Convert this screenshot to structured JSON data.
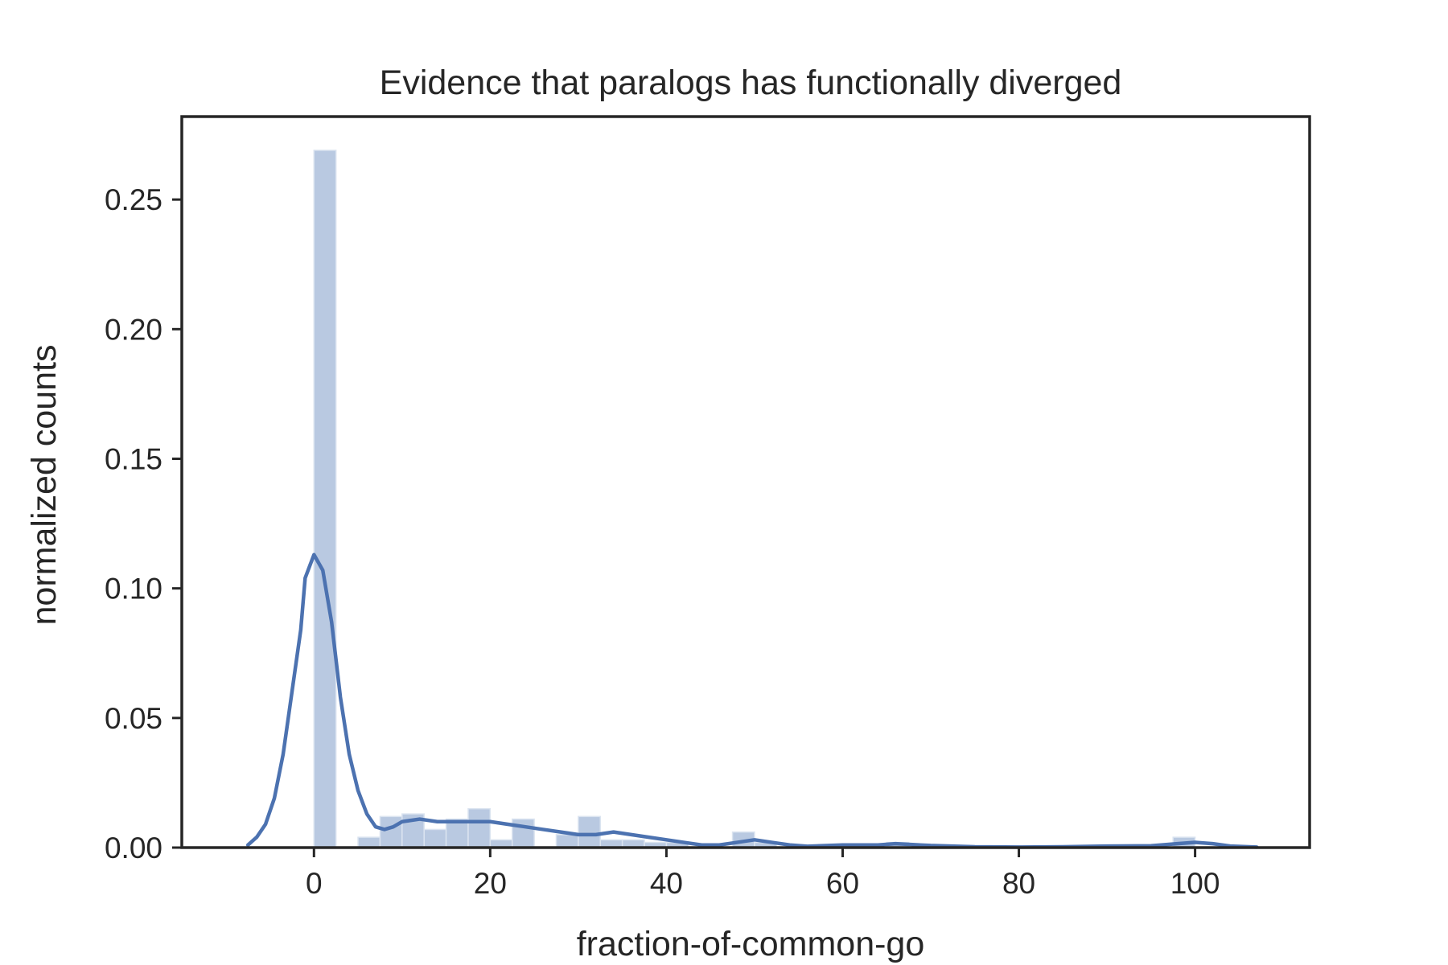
{
  "chart_data": {
    "type": "bar",
    "title": "Evidence that paralogs has functionally diverged",
    "xlabel": "fraction-of-common-go",
    "ylabel": "normalized counts",
    "xlim": [
      -15,
      113
    ],
    "ylim": [
      0,
      0.282
    ],
    "x_ticks": [
      0,
      20,
      40,
      60,
      80,
      100
    ],
    "y_ticks": [
      0.0,
      0.05,
      0.1,
      0.15,
      0.2,
      0.25
    ],
    "x_tick_labels": [
      "0",
      "20",
      "40",
      "60",
      "80",
      "100"
    ],
    "y_tick_labels": [
      "0.00",
      "0.05",
      "0.10",
      "0.15",
      "0.20",
      "0.25"
    ],
    "grid": false,
    "legend": "none",
    "colors": {
      "histogram_fill": "#b9c9e1",
      "histogram_edge": "#dbe4f0",
      "kde_line": "#4c72b0",
      "axes": "#262626"
    },
    "histogram": {
      "bin_width": 2.5,
      "bins": [
        {
          "x0": 0.0,
          "value": 0.269
        },
        {
          "x0": 5.0,
          "value": 0.004
        },
        {
          "x0": 7.5,
          "value": 0.012
        },
        {
          "x0": 10.0,
          "value": 0.013
        },
        {
          "x0": 12.5,
          "value": 0.007
        },
        {
          "x0": 15.0,
          "value": 0.011
        },
        {
          "x0": 17.5,
          "value": 0.015
        },
        {
          "x0": 20.0,
          "value": 0.003
        },
        {
          "x0": 22.5,
          "value": 0.011
        },
        {
          "x0": 27.5,
          "value": 0.005
        },
        {
          "x0": 30.0,
          "value": 0.012
        },
        {
          "x0": 32.5,
          "value": 0.003
        },
        {
          "x0": 35.0,
          "value": 0.003
        },
        {
          "x0": 37.5,
          "value": 0.002
        },
        {
          "x0": 40.0,
          "value": 0.002
        },
        {
          "x0": 47.5,
          "value": 0.006
        },
        {
          "x0": 50.0,
          "value": 0.002
        },
        {
          "x0": 65.0,
          "value": 0.002
        },
        {
          "x0": 97.5,
          "value": 0.004
        }
      ]
    },
    "kde": {
      "x": [
        -7.5,
        -6.5,
        -5.5,
        -4.5,
        -3.5,
        -2.5,
        -1.5,
        -1.0,
        0.0,
        1.0,
        2.0,
        3.0,
        4.0,
        5.0,
        6.0,
        7.0,
        8.0,
        9.0,
        10.0,
        12.0,
        14.0,
        16.0,
        18.0,
        20.0,
        22.0,
        24.0,
        26.0,
        28.0,
        30.0,
        32.0,
        34.0,
        36.0,
        38.0,
        40.0,
        42.0,
        44.0,
        46.0,
        48.0,
        50.0,
        52.0,
        54.0,
        56.0,
        60.0,
        64.0,
        66.0,
        70.0,
        75.0,
        80.0,
        85.0,
        90.0,
        95.0,
        98.0,
        100.0,
        102.0,
        104.0,
        107.0
      ],
      "y": [
        0.001,
        0.004,
        0.009,
        0.019,
        0.036,
        0.06,
        0.084,
        0.104,
        0.113,
        0.107,
        0.087,
        0.058,
        0.036,
        0.022,
        0.013,
        0.008,
        0.007,
        0.008,
        0.01,
        0.011,
        0.01,
        0.01,
        0.01,
        0.01,
        0.009,
        0.008,
        0.007,
        0.006,
        0.005,
        0.005,
        0.006,
        0.005,
        0.004,
        0.003,
        0.002,
        0.001,
        0.001,
        0.002,
        0.003,
        0.002,
        0.001,
        0.0005,
        0.001,
        0.001,
        0.0015,
        0.0008,
        0.0003,
        0.0002,
        0.0003,
        0.0006,
        0.0007,
        0.0015,
        0.002,
        0.0015,
        0.0006,
        0.0002
      ]
    }
  }
}
